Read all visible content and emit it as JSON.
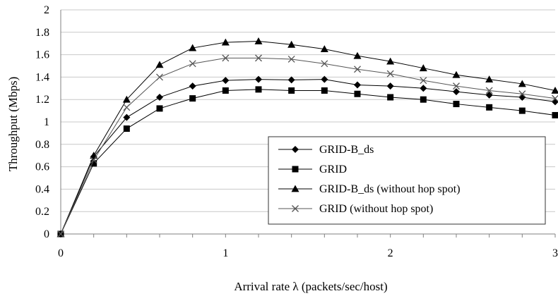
{
  "chart_data": {
    "type": "line",
    "xlabel": "Arrival rate  λ (packets/sec/host)",
    "ylabel": "Throughput  (Mbps)",
    "xlim": [
      0,
      3
    ],
    "ylim": [
      0,
      2
    ],
    "x_ticks": [
      "0",
      "1",
      "2",
      "3"
    ],
    "y_ticks": [
      "0",
      "0.2",
      "0.4",
      "0.6",
      "0.8",
      "1",
      "1.2",
      "1.4",
      "1.6",
      "1.8",
      "2"
    ],
    "grid": "horizontal",
    "legend_position": "lower-right",
    "x": [
      0,
      0.2,
      0.4,
      0.6,
      0.8,
      1.0,
      1.2,
      1.4,
      1.6,
      1.8,
      2.0,
      2.2,
      2.4,
      2.6,
      2.8,
      3.0
    ],
    "series": [
      {
        "name": "GRID-B_ds",
        "marker": "diamond",
        "color": "#000000",
        "values": [
          0,
          0.69,
          1.04,
          1.22,
          1.32,
          1.37,
          1.38,
          1.375,
          1.38,
          1.33,
          1.32,
          1.3,
          1.27,
          1.24,
          1.22,
          1.18
        ]
      },
      {
        "name": "GRID",
        "marker": "square",
        "color": "#000000",
        "values": [
          0,
          0.63,
          0.94,
          1.12,
          1.21,
          1.28,
          1.29,
          1.28,
          1.28,
          1.25,
          1.22,
          1.2,
          1.16,
          1.13,
          1.1,
          1.06
        ]
      },
      {
        "name": "GRID-B_ds (without hop spot)",
        "marker": "triangle",
        "color": "#000000",
        "values": [
          0,
          0.7,
          1.2,
          1.51,
          1.66,
          1.71,
          1.72,
          1.69,
          1.65,
          1.59,
          1.54,
          1.48,
          1.42,
          1.38,
          1.34,
          1.28
        ]
      },
      {
        "name": "GRID (without hop spot)",
        "marker": "x",
        "color": "#555555",
        "values": [
          0,
          0.66,
          1.13,
          1.4,
          1.52,
          1.57,
          1.57,
          1.56,
          1.52,
          1.47,
          1.43,
          1.37,
          1.32,
          1.28,
          1.25,
          1.21
        ]
      }
    ]
  }
}
